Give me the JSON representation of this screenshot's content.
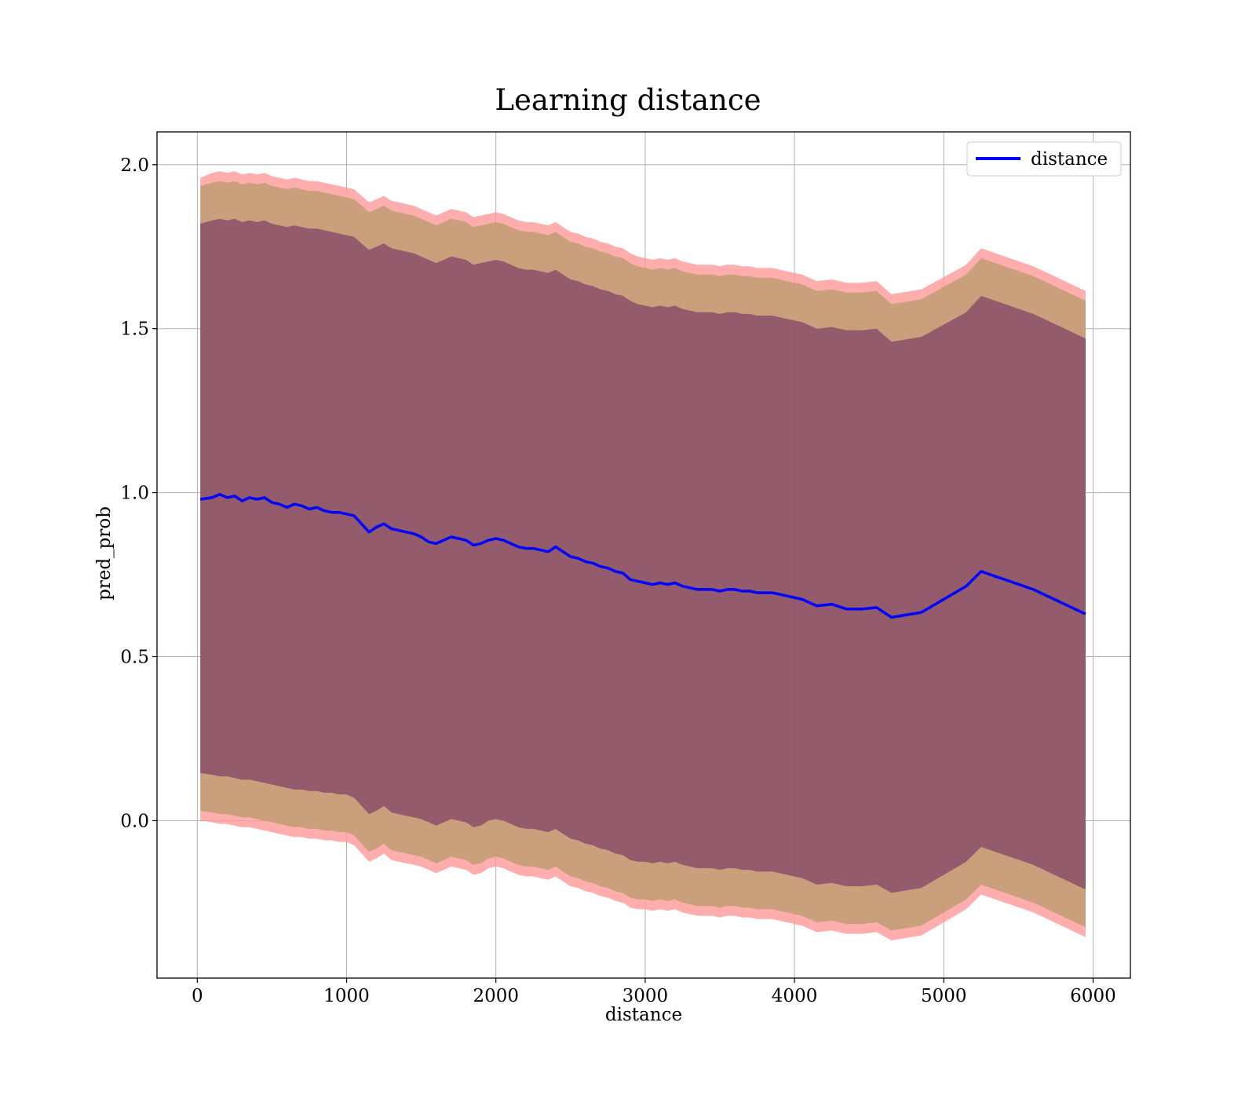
{
  "chart_data": {
    "type": "line",
    "title": "Learning distance",
    "xlabel": "distance",
    "ylabel": "pred_prob",
    "xlim": [
      -270,
      6250
    ],
    "ylim": [
      -0.48,
      2.1
    ],
    "xticks": [
      0,
      1000,
      2000,
      3000,
      4000,
      5000,
      6000
    ],
    "yticks": [
      0.0,
      0.5,
      1.0,
      1.5,
      2.0
    ],
    "xtick_labels": [
      "0",
      "1000",
      "2000",
      "3000",
      "4000",
      "5000",
      "6000"
    ],
    "ytick_labels": [
      "0.0",
      "0.5",
      "1.0",
      "1.5",
      "2.0"
    ],
    "grid": true,
    "legend_position": "top-right",
    "colors": {
      "line": "#0000ff",
      "band_outer": "#ff9999",
      "band_middle": "#bf9c73",
      "band_inner": "#8b4f6a",
      "grid": "#b0b0b0"
    },
    "series": [
      {
        "name": "distance",
        "x": [
          20,
          100,
          150,
          200,
          250,
          300,
          350,
          400,
          450,
          500,
          550,
          600,
          650,
          700,
          750,
          800,
          850,
          900,
          950,
          1000,
          1050,
          1100,
          1150,
          1200,
          1250,
          1300,
          1350,
          1400,
          1450,
          1500,
          1550,
          1600,
          1650,
          1700,
          1750,
          1800,
          1850,
          1900,
          1950,
          2000,
          2050,
          2100,
          2150,
          2200,
          2250,
          2300,
          2350,
          2400,
          2450,
          2500,
          2550,
          2600,
          2650,
          2700,
          2750,
          2800,
          2850,
          2900,
          2950,
          3000,
          3050,
          3100,
          3150,
          3200,
          3250,
          3300,
          3350,
          3400,
          3450,
          3500,
          3550,
          3600,
          3650,
          3700,
          3750,
          3800,
          3850,
          3900,
          3950,
          4000,
          4050,
          4100,
          4150,
          4250,
          4350,
          4450,
          4550,
          4650,
          4850,
          5150,
          5250,
          5600,
          5950
        ],
        "values": [
          0.98,
          0.985,
          0.995,
          0.985,
          0.99,
          0.975,
          0.985,
          0.98,
          0.985,
          0.97,
          0.965,
          0.955,
          0.965,
          0.96,
          0.95,
          0.955,
          0.945,
          0.94,
          0.94,
          0.935,
          0.93,
          0.905,
          0.88,
          0.895,
          0.905,
          0.89,
          0.885,
          0.88,
          0.875,
          0.865,
          0.85,
          0.845,
          0.855,
          0.865,
          0.86,
          0.855,
          0.84,
          0.845,
          0.855,
          0.86,
          0.855,
          0.845,
          0.835,
          0.83,
          0.83,
          0.825,
          0.82,
          0.835,
          0.82,
          0.805,
          0.8,
          0.79,
          0.785,
          0.775,
          0.77,
          0.76,
          0.755,
          0.735,
          0.73,
          0.725,
          0.72,
          0.725,
          0.72,
          0.725,
          0.715,
          0.71,
          0.705,
          0.705,
          0.705,
          0.7,
          0.705,
          0.705,
          0.7,
          0.7,
          0.695,
          0.695,
          0.695,
          0.69,
          0.685,
          0.68,
          0.675,
          0.665,
          0.655,
          0.66,
          0.645,
          0.645,
          0.65,
          0.62,
          0.635,
          0.715,
          0.76,
          0.705,
          0.63
        ]
      }
    ],
    "bands": [
      {
        "level": "outer",
        "lower": [
          0.0,
          -0.005,
          -0.01,
          -0.01,
          -0.015,
          -0.02,
          -0.02,
          -0.025,
          -0.03,
          -0.035,
          -0.04,
          -0.045,
          -0.05,
          -0.05,
          -0.055,
          -0.055,
          -0.06,
          -0.06,
          -0.065,
          -0.065,
          -0.075,
          -0.1,
          -0.125,
          -0.115,
          -0.1,
          -0.12,
          -0.125,
          -0.13,
          -0.135,
          -0.14,
          -0.15,
          -0.16,
          -0.15,
          -0.14,
          -0.145,
          -0.15,
          -0.165,
          -0.16,
          -0.145,
          -0.14,
          -0.145,
          -0.155,
          -0.165,
          -0.17,
          -0.17,
          -0.175,
          -0.18,
          -0.17,
          -0.185,
          -0.2,
          -0.205,
          -0.215,
          -0.22,
          -0.23,
          -0.235,
          -0.245,
          -0.25,
          -0.265,
          -0.27,
          -0.27,
          -0.275,
          -0.27,
          -0.275,
          -0.27,
          -0.28,
          -0.285,
          -0.29,
          -0.29,
          -0.29,
          -0.295,
          -0.29,
          -0.29,
          -0.295,
          -0.295,
          -0.3,
          -0.3,
          -0.3,
          -0.305,
          -0.31,
          -0.315,
          -0.32,
          -0.33,
          -0.34,
          -0.335,
          -0.345,
          -0.345,
          -0.34,
          -0.365,
          -0.35,
          -0.27,
          -0.225,
          -0.28,
          -0.355
        ],
        "upper": [
          1.96,
          1.975,
          1.98,
          1.975,
          1.98,
          1.97,
          1.975,
          1.97,
          1.975,
          1.965,
          1.96,
          1.955,
          1.96,
          1.955,
          1.95,
          1.95,
          1.945,
          1.94,
          1.935,
          1.93,
          1.925,
          1.905,
          1.885,
          1.895,
          1.905,
          1.89,
          1.885,
          1.88,
          1.875,
          1.865,
          1.855,
          1.845,
          1.855,
          1.865,
          1.86,
          1.855,
          1.84,
          1.845,
          1.85,
          1.855,
          1.85,
          1.84,
          1.83,
          1.825,
          1.825,
          1.82,
          1.815,
          1.825,
          1.81,
          1.795,
          1.79,
          1.78,
          1.775,
          1.765,
          1.76,
          1.75,
          1.745,
          1.73,
          1.72,
          1.715,
          1.71,
          1.715,
          1.71,
          1.715,
          1.705,
          1.7,
          1.695,
          1.695,
          1.695,
          1.69,
          1.695,
          1.695,
          1.69,
          1.69,
          1.685,
          1.685,
          1.685,
          1.68,
          1.675,
          1.67,
          1.665,
          1.655,
          1.645,
          1.65,
          1.64,
          1.64,
          1.645,
          1.605,
          1.62,
          1.695,
          1.745,
          1.69,
          1.615
        ]
      },
      {
        "level": "middle",
        "lower": [
          0.03,
          0.025,
          0.02,
          0.02,
          0.015,
          0.01,
          0.01,
          0.005,
          0.0,
          -0.005,
          -0.01,
          -0.015,
          -0.02,
          -0.02,
          -0.025,
          -0.025,
          -0.03,
          -0.03,
          -0.035,
          -0.035,
          -0.045,
          -0.07,
          -0.095,
          -0.085,
          -0.07,
          -0.09,
          -0.095,
          -0.1,
          -0.105,
          -0.11,
          -0.12,
          -0.13,
          -0.12,
          -0.11,
          -0.115,
          -0.12,
          -0.135,
          -0.13,
          -0.115,
          -0.11,
          -0.115,
          -0.125,
          -0.135,
          -0.14,
          -0.14,
          -0.145,
          -0.15,
          -0.14,
          -0.155,
          -0.17,
          -0.175,
          -0.185,
          -0.19,
          -0.2,
          -0.205,
          -0.215,
          -0.22,
          -0.235,
          -0.24,
          -0.24,
          -0.245,
          -0.24,
          -0.245,
          -0.24,
          -0.25,
          -0.255,
          -0.26,
          -0.26,
          -0.26,
          -0.265,
          -0.26,
          -0.26,
          -0.265,
          -0.265,
          -0.27,
          -0.27,
          -0.27,
          -0.275,
          -0.28,
          -0.285,
          -0.29,
          -0.3,
          -0.31,
          -0.305,
          -0.315,
          -0.315,
          -0.31,
          -0.335,
          -0.32,
          -0.24,
          -0.195,
          -0.25,
          -0.325
        ],
        "upper": [
          1.935,
          1.945,
          1.95,
          1.945,
          1.95,
          1.94,
          1.945,
          1.94,
          1.945,
          1.935,
          1.93,
          1.925,
          1.93,
          1.925,
          1.92,
          1.92,
          1.915,
          1.91,
          1.905,
          1.9,
          1.895,
          1.875,
          1.855,
          1.865,
          1.875,
          1.86,
          1.855,
          1.85,
          1.845,
          1.835,
          1.825,
          1.815,
          1.825,
          1.835,
          1.83,
          1.825,
          1.81,
          1.815,
          1.82,
          1.825,
          1.82,
          1.81,
          1.8,
          1.795,
          1.795,
          1.79,
          1.785,
          1.795,
          1.78,
          1.765,
          1.76,
          1.75,
          1.745,
          1.735,
          1.73,
          1.72,
          1.715,
          1.7,
          1.69,
          1.685,
          1.68,
          1.685,
          1.68,
          1.685,
          1.675,
          1.67,
          1.665,
          1.665,
          1.665,
          1.66,
          1.665,
          1.665,
          1.66,
          1.66,
          1.655,
          1.655,
          1.655,
          1.65,
          1.645,
          1.64,
          1.635,
          1.625,
          1.615,
          1.62,
          1.61,
          1.61,
          1.615,
          1.575,
          1.59,
          1.665,
          1.715,
          1.66,
          1.585
        ]
      },
      {
        "level": "inner",
        "lower": [
          0.145,
          0.14,
          0.135,
          0.135,
          0.13,
          0.125,
          0.125,
          0.12,
          0.115,
          0.11,
          0.105,
          0.1,
          0.095,
          0.095,
          0.09,
          0.09,
          0.085,
          0.085,
          0.08,
          0.08,
          0.07,
          0.045,
          0.02,
          0.03,
          0.045,
          0.025,
          0.02,
          0.015,
          0.01,
          0.005,
          -0.005,
          -0.015,
          -0.005,
          0.005,
          0.0,
          -0.005,
          -0.02,
          -0.015,
          0.0,
          0.005,
          0.0,
          -0.01,
          -0.02,
          -0.025,
          -0.025,
          -0.03,
          -0.035,
          -0.025,
          -0.04,
          -0.055,
          -0.06,
          -0.07,
          -0.075,
          -0.085,
          -0.09,
          -0.1,
          -0.105,
          -0.12,
          -0.125,
          -0.125,
          -0.13,
          -0.125,
          -0.13,
          -0.125,
          -0.135,
          -0.14,
          -0.145,
          -0.145,
          -0.145,
          -0.15,
          -0.145,
          -0.145,
          -0.15,
          -0.15,
          -0.155,
          -0.155,
          -0.155,
          -0.16,
          -0.165,
          -0.17,
          -0.175,
          -0.185,
          -0.195,
          -0.19,
          -0.2,
          -0.2,
          -0.195,
          -0.22,
          -0.205,
          -0.125,
          -0.08,
          -0.135,
          -0.21
        ],
        "upper": [
          1.82,
          1.83,
          1.835,
          1.83,
          1.835,
          1.825,
          1.83,
          1.825,
          1.83,
          1.82,
          1.815,
          1.81,
          1.815,
          1.81,
          1.805,
          1.805,
          1.8,
          1.795,
          1.79,
          1.785,
          1.78,
          1.76,
          1.74,
          1.75,
          1.76,
          1.745,
          1.74,
          1.735,
          1.73,
          1.72,
          1.71,
          1.7,
          1.71,
          1.72,
          1.715,
          1.71,
          1.695,
          1.7,
          1.705,
          1.71,
          1.705,
          1.695,
          1.685,
          1.68,
          1.68,
          1.675,
          1.67,
          1.68,
          1.665,
          1.65,
          1.645,
          1.635,
          1.63,
          1.62,
          1.615,
          1.605,
          1.6,
          1.585,
          1.575,
          1.57,
          1.565,
          1.57,
          1.565,
          1.57,
          1.56,
          1.555,
          1.55,
          1.55,
          1.55,
          1.545,
          1.55,
          1.55,
          1.545,
          1.545,
          1.54,
          1.54,
          1.54,
          1.535,
          1.53,
          1.525,
          1.52,
          1.51,
          1.5,
          1.505,
          1.495,
          1.495,
          1.5,
          1.46,
          1.475,
          1.55,
          1.6,
          1.545,
          1.47
        ]
      }
    ]
  }
}
